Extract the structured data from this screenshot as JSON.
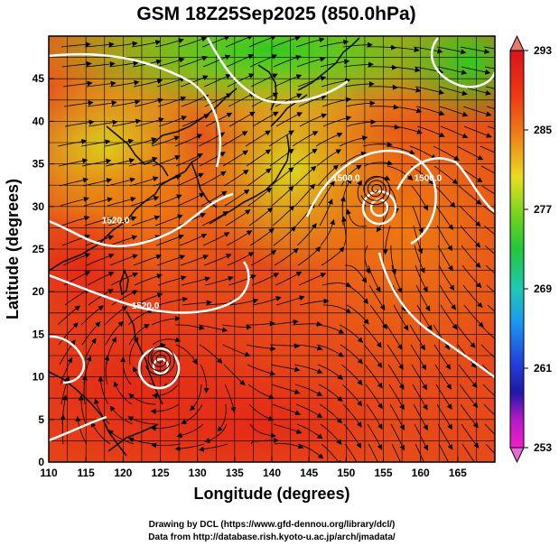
{
  "title": "GSM 18Z25Sep2025 (850.0hPa)",
  "xlabel": "Longitude (degrees)",
  "ylabel": "Latitude  (degrees)",
  "credits": {
    "line1": "Drawing by DCL (https://www.gfd-dennou.org/library/dcl/)",
    "line2": "Data from http://database.rish.kyoto-u.ac.jp/arch/jmadata/"
  },
  "map": {
    "lon_range": [
      110,
      170
    ],
    "lat_range": [
      0,
      50
    ],
    "lon_ticks": [
      "110",
      "115",
      "120",
      "125",
      "130",
      "135",
      "140",
      "145",
      "150",
      "155",
      "160",
      "165"
    ],
    "lat_ticks": [
      "0",
      "5",
      "10",
      "15",
      "20",
      "25",
      "30",
      "35",
      "40",
      "45"
    ],
    "contour_labels": [
      {
        "text": "1520.0",
        "lon": 119,
        "lat": 28
      },
      {
        "text": "1520.0",
        "lon": 123,
        "lat": 18
      },
      {
        "text": "1500.0",
        "lon": 150,
        "lat": 33
      },
      {
        "text": "1500.0",
        "lon": 161,
        "lat": 33
      }
    ],
    "cyclones": [
      {
        "name": "typhoon-east",
        "lon": 154,
        "lat": 32
      },
      {
        "name": "typhoon-philippine-sea",
        "lon": 125,
        "lat": 12
      }
    ],
    "colors": {
      "warm": "#e8361a",
      "mid": "#f07a10",
      "yellow": "#e8e020",
      "green": "#3ccf1e",
      "contour": "#ffffff",
      "coast": "#111111"
    }
  },
  "colorbar": {
    "ticks": [
      "293",
      "285",
      "277",
      "269",
      "261",
      "253"
    ],
    "range": [
      253,
      293
    ]
  }
}
